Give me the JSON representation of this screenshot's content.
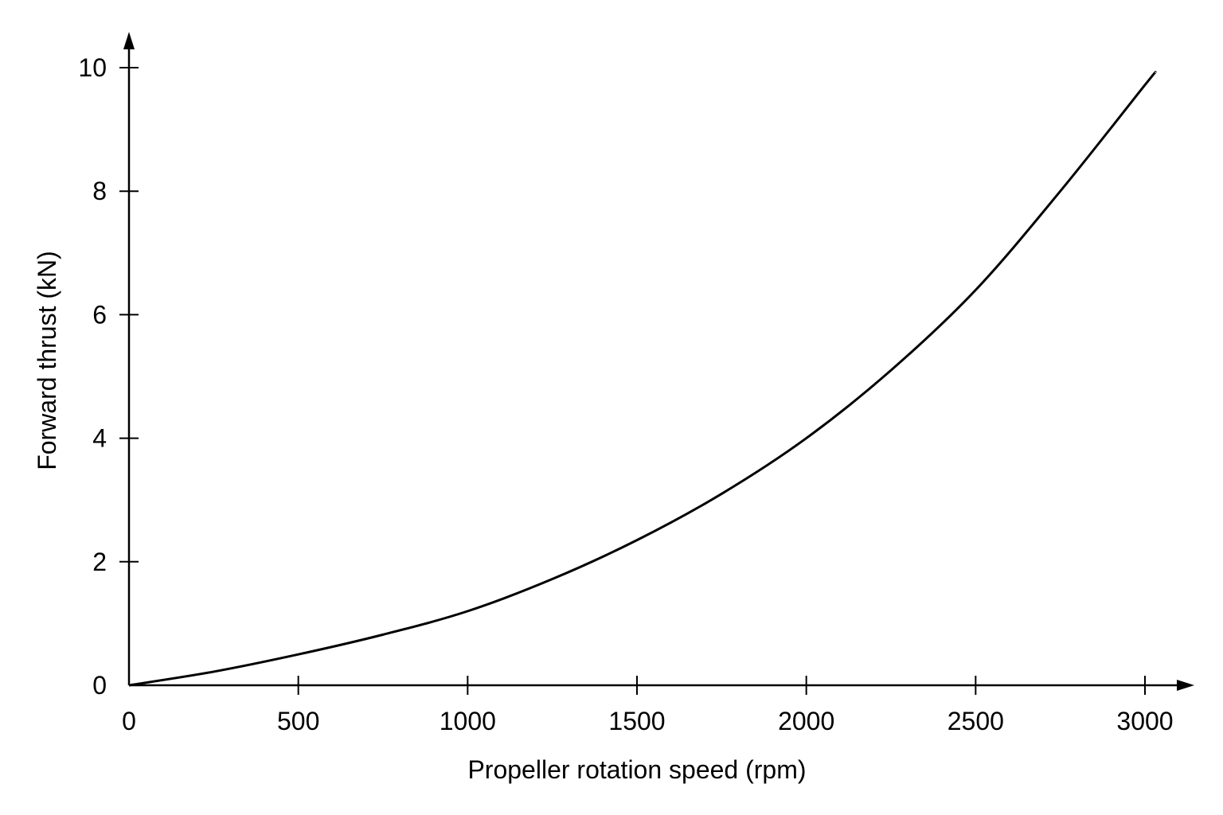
{
  "chart_data": {
    "type": "line",
    "title": "",
    "xlabel": "Propeller rotation speed (rpm)",
    "ylabel": "Forward thrust  (kN)",
    "xlim": [
      0,
      3000
    ],
    "ylim": [
      0,
      10
    ],
    "grid": false,
    "x_ticks": [
      0,
      500,
      1000,
      1500,
      2000,
      2500,
      3000
    ],
    "x_tick_labels": [
      "0",
      "500",
      "1000",
      "1500",
      "2000",
      "2500",
      "3000"
    ],
    "y_ticks": [
      0,
      2,
      4,
      6,
      8,
      10
    ],
    "y_tick_labels": [
      "0",
      "2",
      "4",
      "6",
      "8",
      "10"
    ],
    "series": [
      {
        "color": "#000000",
        "x": [
          0,
          250,
          500,
          750,
          1000,
          1250,
          1500,
          1750,
          2000,
          2250,
          2500,
          2750,
          3000,
          3030
        ],
        "y": [
          0,
          0.22,
          0.5,
          0.82,
          1.2,
          1.72,
          2.35,
          3.1,
          4.0,
          5.1,
          6.4,
          8.0,
          9.72,
          9.92
        ]
      }
    ]
  }
}
